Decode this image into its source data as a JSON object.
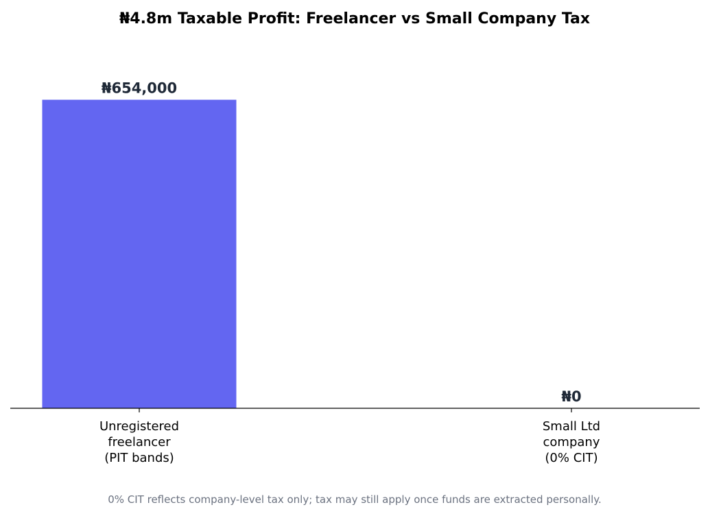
{
  "chart_data": {
    "type": "bar",
    "title": "₦4.8m Taxable Profit: Freelancer vs Small Company Tax",
    "categories": [
      [
        "Unregistered",
        "freelancer",
        "(PIT bands)"
      ],
      [
        "Small Ltd",
        "company",
        "(0% CIT)"
      ]
    ],
    "values": [
      654000,
      0
    ],
    "value_labels": [
      "₦654,000",
      "₦0"
    ],
    "bar_color": "#6366f1",
    "label_color": "#1f2937",
    "ylim": [
      0,
      720000
    ],
    "grid": false,
    "y_axis_visible": false,
    "xlabel": "",
    "ylabel": ""
  },
  "footnote": "0% CIT reflects company-level tax only; tax may still apply once funds are extracted personally."
}
